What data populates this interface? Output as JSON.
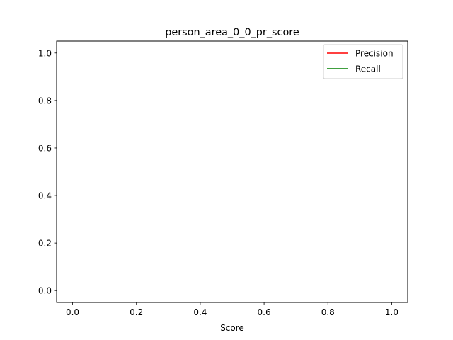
{
  "chart_data": {
    "type": "line",
    "title": "person_area_0_0_pr_score",
    "xlabel": "Score",
    "ylabel": "",
    "xlim": [
      -0.05,
      1.05
    ],
    "ylim": [
      -0.05,
      1.05
    ],
    "xticks": [
      "0.0",
      "0.2",
      "0.4",
      "0.6",
      "0.8",
      "1.0"
    ],
    "yticks": [
      "0.0",
      "0.2",
      "0.4",
      "0.6",
      "0.8",
      "1.0"
    ],
    "grid": false,
    "legend_position": "top-right",
    "series": [
      {
        "name": "Precision",
        "color": "#ff0000",
        "x": [],
        "y": []
      },
      {
        "name": "Recall",
        "color": "#008000",
        "x": [],
        "y": []
      }
    ]
  }
}
